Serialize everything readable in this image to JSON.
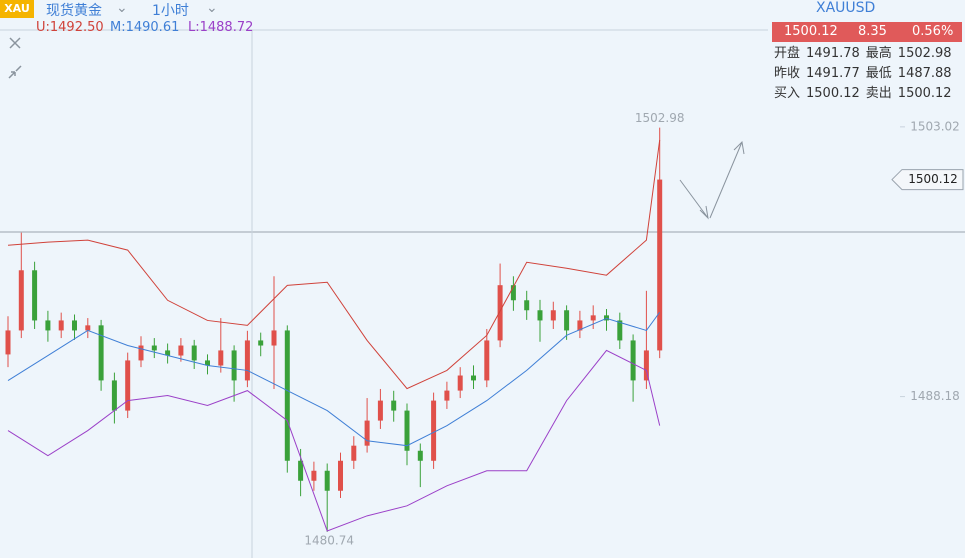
{
  "header": {
    "symbol_icon": "XAU",
    "name": "现货黄金",
    "period": "1小时",
    "bands_legend": [
      "U:1492.50",
      "M:1490.61",
      "L:1488.72"
    ]
  },
  "quote": {
    "symbol": "XAUUSD",
    "price": "1500.12",
    "change": "8.35",
    "change_pct": "0.56%",
    "rows": [
      [
        "开盘",
        "1491.78",
        "最高",
        "1502.98"
      ],
      [
        "昨收",
        "1491.77",
        "最低",
        "1487.88"
      ],
      [
        "买入",
        "1500.12",
        "卖出",
        "1500.12"
      ]
    ]
  },
  "chart_data": {
    "type": "candlestick",
    "open": [
      1490.5,
      1491.82,
      1495.13,
      1492.37,
      1491.82,
      1492.37,
      1491.82,
      1492.1,
      1489.07,
      1487.41,
      1490.17,
      1490.99,
      1490.72,
      1490.44,
      1490.99,
      1490.17,
      1489.89,
      1490.72,
      1489.07,
      1491.27,
      1490.99,
      1491.82,
      1484.65,
      1483.55,
      1484.1,
      1483.0,
      1484.65,
      1485.48,
      1486.86,
      1487.96,
      1487.41,
      1485.2,
      1484.65,
      1487.96,
      1488.51,
      1489.34,
      1489.07,
      1491.27,
      1494.31,
      1493.48,
      1492.93,
      1492.37,
      1492.93,
      1491.82,
      1492.37,
      1492.65,
      1492.37,
      1491.27,
      1489.07,
      1490.72
    ],
    "high": [
      1492.6,
      1497.2,
      1495.6,
      1492.9,
      1492.8,
      1492.7,
      1492.5,
      1492.4,
      1489.5,
      1490.6,
      1491.5,
      1491.4,
      1491.1,
      1491.4,
      1491.3,
      1490.5,
      1492.5,
      1491.0,
      1491.8,
      1491.7,
      1494.8,
      1492.1,
      1485.3,
      1484.6,
      1484.5,
      1485.1,
      1486.0,
      1488.1,
      1488.6,
      1488.5,
      1487.8,
      1485.6,
      1488.4,
      1489.0,
      1489.8,
      1489.9,
      1491.9,
      1495.5,
      1494.8,
      1494.0,
      1493.5,
      1493.4,
      1493.2,
      1492.9,
      1493.2,
      1493.0,
      1492.8,
      1491.6,
      1494.0,
      1502.98
    ],
    "low": [
      1489.8,
      1491.4,
      1491.9,
      1491.2,
      1491.4,
      1491.3,
      1491.4,
      1488.5,
      1486.7,
      1487.0,
      1489.8,
      1490.3,
      1490.0,
      1490.1,
      1489.7,
      1489.4,
      1489.5,
      1487.9,
      1488.7,
      1490.4,
      1488.6,
      1484.0,
      1482.7,
      1483.0,
      1480.74,
      1482.6,
      1484.2,
      1485.1,
      1486.4,
      1486.8,
      1484.4,
      1483.2,
      1484.2,
      1487.5,
      1488.1,
      1488.6,
      1488.7,
      1490.9,
      1492.9,
      1492.4,
      1491.2,
      1491.9,
      1491.3,
      1491.4,
      1491.9,
      1491.8,
      1490.8,
      1487.9,
      1488.6,
      1490.3
    ],
    "close": [
      1491.82,
      1495.13,
      1492.37,
      1491.82,
      1492.37,
      1491.82,
      1492.1,
      1489.07,
      1487.41,
      1490.17,
      1490.99,
      1490.72,
      1490.44,
      1490.99,
      1490.17,
      1489.89,
      1490.72,
      1489.07,
      1491.27,
      1490.99,
      1491.82,
      1484.65,
      1483.55,
      1484.1,
      1483.0,
      1484.65,
      1485.48,
      1486.86,
      1487.96,
      1487.41,
      1485.2,
      1484.65,
      1487.96,
      1488.51,
      1489.34,
      1489.07,
      1491.27,
      1494.31,
      1493.48,
      1492.93,
      1492.37,
      1492.93,
      1491.82,
      1492.37,
      1492.65,
      1492.37,
      1491.27,
      1489.07,
      1490.72,
      1500.12
    ],
    "colors": {
      "up": "#e0504a",
      "down": "#3aa13a"
    },
    "bands": {
      "x": [
        0,
        3,
        6,
        9,
        12,
        15,
        18,
        21,
        24,
        27,
        30,
        33,
        36,
        39,
        42,
        45,
        48,
        49
      ],
      "series": [
        {
          "color": "#d0423a",
          "values": [
            1496.51,
            1496.68,
            1496.79,
            1496.24,
            1493.48,
            1492.37,
            1492.1,
            1494.3,
            1494.47,
            1491.27,
            1488.62,
            1489.62,
            1491.55,
            1495.57,
            1495.24,
            1494.86,
            1496.79,
            1502.3
          ]
        },
        {
          "color": "#3f7fd6",
          "values": [
            1489.06,
            1490.44,
            1491.82,
            1490.99,
            1490.44,
            1489.89,
            1489.62,
            1488.51,
            1487.41,
            1485.75,
            1485.48,
            1486.58,
            1487.96,
            1489.62,
            1491.55,
            1492.48,
            1491.82,
            1492.82
          ]
        },
        {
          "color": "#9b40c8",
          "values": [
            1486.31,
            1484.93,
            1486.31,
            1487.96,
            1488.24,
            1487.69,
            1488.51,
            1486.86,
            1480.79,
            1481.62,
            1482.17,
            1483.27,
            1484.1,
            1484.1,
            1487.96,
            1490.72,
            1489.62,
            1486.58
          ]
        }
      ]
    },
    "ylim": [
      1479.3,
      1510.0
    ],
    "yticks": [
      1503.02,
      1488.18
    ],
    "current_price": 1500.12,
    "annotations": [
      {
        "value": 1502.98,
        "index": 49
      },
      {
        "value": 1480.74,
        "index": 24
      }
    ]
  }
}
